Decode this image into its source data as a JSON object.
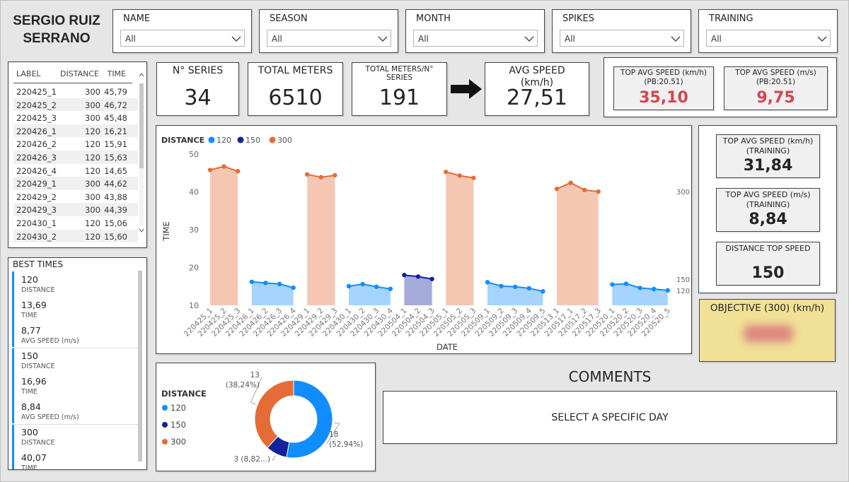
{
  "header": {
    "name": "SERGIO RUIZ SERRANO"
  },
  "filters": [
    {
      "label": "NAME",
      "value": "All"
    },
    {
      "label": "SEASON",
      "value": "All"
    },
    {
      "label": "MONTH",
      "value": "All"
    },
    {
      "label": "SPIKES",
      "value": "All"
    },
    {
      "label": "TRAINING",
      "value": "All"
    }
  ],
  "table": {
    "columns": [
      "LABEL",
      "DISTANCE",
      "TIME"
    ],
    "rows": [
      [
        "220425_1",
        "300",
        "45,79"
      ],
      [
        "220425_2",
        "300",
        "46,72"
      ],
      [
        "220425_3",
        "300",
        "45,48"
      ],
      [
        "220426_1",
        "120",
        "16,21"
      ],
      [
        "220426_2",
        "120",
        "15,91"
      ],
      [
        "220426_3",
        "120",
        "15,63"
      ],
      [
        "220426_4",
        "120",
        "14,65"
      ],
      [
        "220429_1",
        "300",
        "44,62"
      ],
      [
        "220429_2",
        "300",
        "43,88"
      ],
      [
        "220429_3",
        "300",
        "44,39"
      ],
      [
        "220430_1",
        "120",
        "15,06"
      ],
      [
        "220430_2",
        "120",
        "15,60"
      ]
    ]
  },
  "best_times": {
    "title": "BEST TIMES",
    "groups": [
      [
        {
          "value": "120",
          "label": "DISTANCE"
        },
        {
          "value": "13,69",
          "label": "TIME"
        },
        {
          "value": "8,77",
          "label": "AVG SPEED (m/s)"
        }
      ],
      [
        {
          "value": "150",
          "label": "DISTANCE"
        },
        {
          "value": "16,96",
          "label": "TIME"
        },
        {
          "value": "8,84",
          "label": "AVG SPEED (m/s)"
        }
      ],
      [
        {
          "value": "300",
          "label": "DISTANCE"
        },
        {
          "value": "40,07",
          "label": "TIME"
        }
      ]
    ]
  },
  "kpis": [
    {
      "label": "N° SERIES",
      "value": "34"
    },
    {
      "label": "TOTAL METERS",
      "value": "6510"
    },
    {
      "label": "TOTAL METERS/N° SERIES",
      "value": "191"
    },
    {
      "label": "AVG SPEED (km/h)",
      "value": "27,51"
    }
  ],
  "pb_cards": [
    {
      "label": "TOP AVG SPEED (km/h) (PB:20.51)",
      "value": "35,10"
    },
    {
      "label": "TOP AVG SPEED (m/s) (PB:20.51)",
      "value": "9,75"
    }
  ],
  "training_cards": [
    {
      "label": "TOP AVG SPEED (km/h) (TRAINING)",
      "value": "31,84"
    },
    {
      "label": "TOP AVG SPEED (m/s) (TRAINING)",
      "value": "8,84"
    },
    {
      "label": "DISTANCE TOP SPEED",
      "value": "150"
    }
  ],
  "objective": {
    "label": "OBJECTIVE (300) (km/h)"
  },
  "comments": {
    "title": "COMMENTS",
    "text": "SELECT A SPECIFIC DAY"
  },
  "chart_data": [
    {
      "type": "line",
      "area": true,
      "legend_title": "DISTANCE",
      "x_label": "DATE",
      "y_label": "TIME",
      "categories": [
        "220425_1",
        "220425_2",
        "220425_3",
        "220426_1",
        "220426_2",
        "220426_3",
        "220426_4",
        "220429_1",
        "220429_2",
        "220429_3",
        "220430_1",
        "220430_2",
        "220430_3",
        "220430_4",
        "220504_1",
        "220504_2",
        "220504_3",
        "220505_1",
        "220505_2",
        "220505_3",
        "220509_1",
        "220509_2",
        "220509_3",
        "220509_4",
        "220509_5",
        "220513_1",
        "220517_1",
        "220517_2",
        "220517_3",
        "220520_1",
        "220520_2",
        "220520_3",
        "220520_4",
        "220520_5"
      ],
      "series": [
        {
          "name": "120",
          "color": "#118DFF",
          "values": [
            null,
            null,
            null,
            16.21,
            15.91,
            15.63,
            14.65,
            null,
            null,
            null,
            15.06,
            15.6,
            14.9,
            14.35,
            null,
            null,
            null,
            null,
            null,
            null,
            16.1,
            15.1,
            14.9,
            14.5,
            13.69,
            null,
            null,
            null,
            null,
            15.5,
            15.7,
            14.6,
            14.3,
            13.95
          ]
        },
        {
          "name": "150",
          "color": "#12239E",
          "values": [
            null,
            null,
            null,
            null,
            null,
            null,
            null,
            null,
            null,
            null,
            null,
            null,
            null,
            null,
            18.0,
            17.6,
            16.96,
            null,
            null,
            null,
            null,
            null,
            null,
            null,
            null,
            null,
            null,
            null,
            null,
            null,
            null,
            null,
            null,
            null
          ]
        },
        {
          "name": "300",
          "color": "#E66C37",
          "values": [
            45.79,
            46.72,
            45.48,
            null,
            null,
            null,
            null,
            44.62,
            43.88,
            44.39,
            null,
            null,
            null,
            null,
            null,
            null,
            null,
            45.3,
            44.3,
            43.7,
            null,
            null,
            null,
            null,
            null,
            40.8,
            42.4,
            40.5,
            40.07,
            null,
            null,
            null,
            null,
            null
          ]
        }
      ],
      "ylim": [
        10,
        50
      ],
      "yticks": [
        10,
        20,
        30,
        40,
        50
      ],
      "grid": false
    },
    {
      "type": "pie",
      "donut": true,
      "legend_title": "DISTANCE",
      "categories": [
        "120",
        "150",
        "300"
      ],
      "values": [
        18,
        3,
        13
      ],
      "value_labels": [
        [
          "18",
          "(52,94%)"
        ],
        [
          "3 (8,82...)"
        ],
        [
          "13",
          "(38,24%)"
        ]
      ],
      "colors": [
        "#118DFF",
        "#12239E",
        "#E66C37"
      ]
    }
  ]
}
